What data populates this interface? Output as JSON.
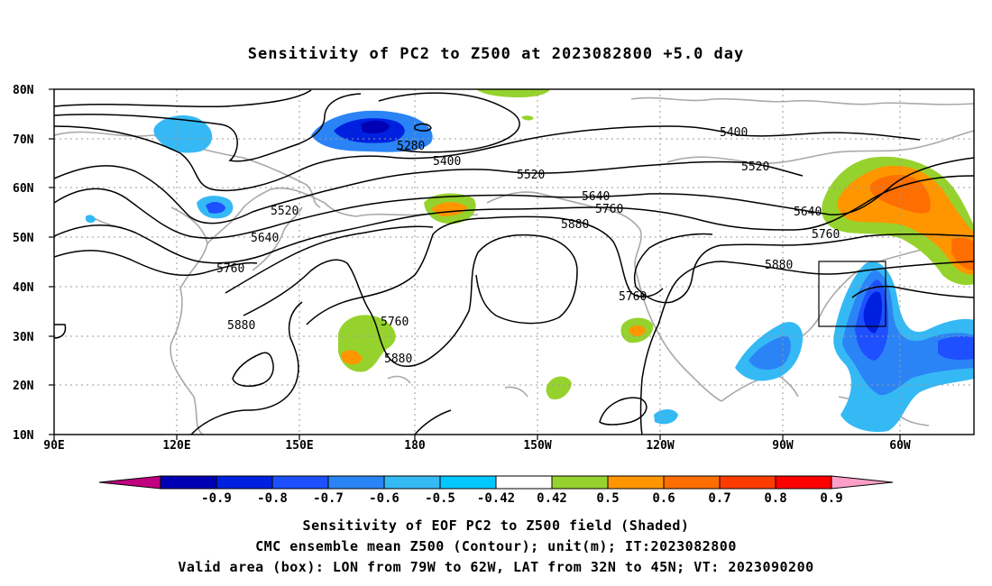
{
  "title": "Sensitivity of PC2 to Z500 at 2023082800 +5.0 day",
  "map": {
    "lat_labels": [
      "80N",
      "70N",
      "60N",
      "50N",
      "40N",
      "30N",
      "20N",
      "10N"
    ],
    "lon_labels": [
      "90E",
      "120E",
      "150E",
      "180",
      "150W",
      "120W",
      "90W",
      "60W"
    ],
    "contour_labels": [
      "5280",
      "5400",
      "5400",
      "5520",
      "5520",
      "5520",
      "5640",
      "5640",
      "5640",
      "5760",
      "5760",
      "5760",
      "5760",
      "5760",
      "5880",
      "5880",
      "5880",
      "5880"
    ],
    "valid_box": {
      "lon_from": "79W",
      "lon_to": "62W",
      "lat_from": "32N",
      "lat_to": "45N"
    }
  },
  "colorbar": {
    "labels": [
      "-0.9",
      "-0.8",
      "-0.7",
      "-0.6",
      "-0.5",
      "-0.42",
      "0.42",
      "0.5",
      "0.6",
      "0.7",
      "0.8",
      "0.9"
    ],
    "colors": [
      "#c0007f",
      "#0000b4",
      "#0020e0",
      "#1e50ff",
      "#2b84f5",
      "#35b9f5",
      "#00c8ff",
      "#ffffff",
      "#96d22d",
      "#ff9600",
      "#ff6e00",
      "#ff3c00",
      "#ff0000",
      "#ff9fc8"
    ]
  },
  "captions": {
    "line1": "Sensitivity of EOF PC2 to Z500 field (Shaded)",
    "line2": "CMC ensemble mean Z500 (Contour); unit(m); IT:2023082800",
    "line3": "Valid area (box): LON from 79W to 62W, LAT from 32N to 45N; VT: 2023090200"
  }
}
